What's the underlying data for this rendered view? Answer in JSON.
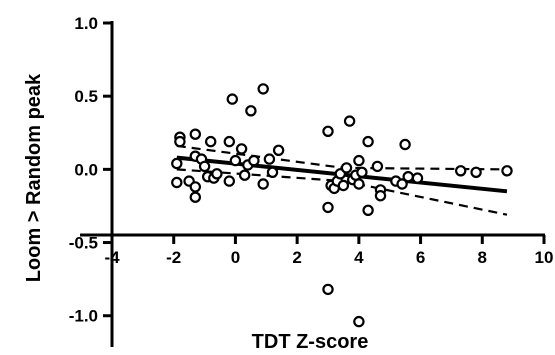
{
  "chart_data": {
    "type": "scatter",
    "title": "",
    "xlabel": "TDT Z-score",
    "ylabel": "Loom > Random peak",
    "xlim": [
      -4,
      10
    ],
    "ylim": [
      -1.2,
      1.0
    ],
    "x_ticks": [
      -4,
      -2,
      0,
      2,
      4,
      6,
      8,
      10
    ],
    "x_tick_labels": [
      "-4",
      "-2",
      "0",
      "2",
      "4",
      "6",
      "8",
      "10"
    ],
    "y_ticks": [
      -1.0,
      -0.5,
      0.0,
      0.5,
      1.0
    ],
    "y_tick_labels": [
      "-1.0",
      "-0.5",
      "0.0",
      "0.5",
      "1.0"
    ],
    "grid": false,
    "legend": "none",
    "colors": {
      "axis": "#000000",
      "points": "#000000",
      "fit": "#000000",
      "band": "#000000"
    },
    "points": [
      {
        "x": -1.8,
        "y": 0.22
      },
      {
        "x": -1.8,
        "y": 0.19
      },
      {
        "x": -1.9,
        "y": 0.04
      },
      {
        "x": -1.9,
        "y": -0.09
      },
      {
        "x": -1.5,
        "y": -0.08
      },
      {
        "x": -1.3,
        "y": 0.24
      },
      {
        "x": -1.3,
        "y": 0.09
      },
      {
        "x": -1.3,
        "y": -0.12
      },
      {
        "x": -1.3,
        "y": -0.19
      },
      {
        "x": -1.1,
        "y": 0.07
      },
      {
        "x": -1.0,
        "y": 0.02
      },
      {
        "x": -0.9,
        "y": -0.05
      },
      {
        "x": -0.8,
        "y": 0.19
      },
      {
        "x": -0.7,
        "y": -0.06
      },
      {
        "x": -0.6,
        "y": -0.03
      },
      {
        "x": -0.2,
        "y": 0.19
      },
      {
        "x": -0.2,
        "y": -0.08
      },
      {
        "x": -0.1,
        "y": 0.48
      },
      {
        "x": 0.0,
        "y": 0.06
      },
      {
        "x": 0.2,
        "y": 0.14
      },
      {
        "x": 0.3,
        "y": -0.04
      },
      {
        "x": 0.4,
        "y": 0.03
      },
      {
        "x": 0.5,
        "y": 0.4
      },
      {
        "x": 0.6,
        "y": 0.06
      },
      {
        "x": 0.9,
        "y": -0.1
      },
      {
        "x": 0.9,
        "y": 0.55
      },
      {
        "x": 1.1,
        "y": 0.07
      },
      {
        "x": 1.2,
        "y": -0.02
      },
      {
        "x": 1.4,
        "y": 0.13
      },
      {
        "x": 3.0,
        "y": 0.26
      },
      {
        "x": 3.0,
        "y": -0.26
      },
      {
        "x": 3.1,
        "y": -0.11
      },
      {
        "x": 3.2,
        "y": -0.13
      },
      {
        "x": 3.3,
        "y": -0.08
      },
      {
        "x": 3.4,
        "y": -0.03
      },
      {
        "x": 3.5,
        "y": -0.11
      },
      {
        "x": 3.6,
        "y": 0.01
      },
      {
        "x": 3.7,
        "y": 0.33
      },
      {
        "x": 3.8,
        "y": -0.07
      },
      {
        "x": 3.9,
        "y": -0.04
      },
      {
        "x": 4.0,
        "y": -0.1
      },
      {
        "x": 4.0,
        "y": 0.06
      },
      {
        "x": 4.1,
        "y": -0.02
      },
      {
        "x": 4.3,
        "y": 0.19
      },
      {
        "x": 4.3,
        "y": -0.28
      },
      {
        "x": 4.6,
        "y": 0.02
      },
      {
        "x": 4.7,
        "y": -0.14
      },
      {
        "x": 4.7,
        "y": -0.18
      },
      {
        "x": 5.2,
        "y": -0.08
      },
      {
        "x": 5.4,
        "y": -0.1
      },
      {
        "x": 5.5,
        "y": 0.17
      },
      {
        "x": 5.6,
        "y": -0.05
      },
      {
        "x": 5.9,
        "y": -0.06
      },
      {
        "x": 7.3,
        "y": -0.01
      },
      {
        "x": 7.8,
        "y": -0.02
      },
      {
        "x": 8.8,
        "y": -0.01
      },
      {
        "x": 3.0,
        "y": -0.82
      },
      {
        "x": 4.0,
        "y": -1.04
      }
    ],
    "fit_line": {
      "x": [
        -1.9,
        8.8
      ],
      "y": [
        0.08,
        -0.15
      ]
    },
    "ci_upper": {
      "x": [
        -1.9,
        3.5,
        8.8
      ],
      "y": [
        0.16,
        0.01,
        0.0
      ]
    },
    "ci_lower": {
      "x": [
        -1.9,
        3.5,
        8.8
      ],
      "y": [
        0.0,
        -0.08,
        -0.31
      ]
    }
  }
}
